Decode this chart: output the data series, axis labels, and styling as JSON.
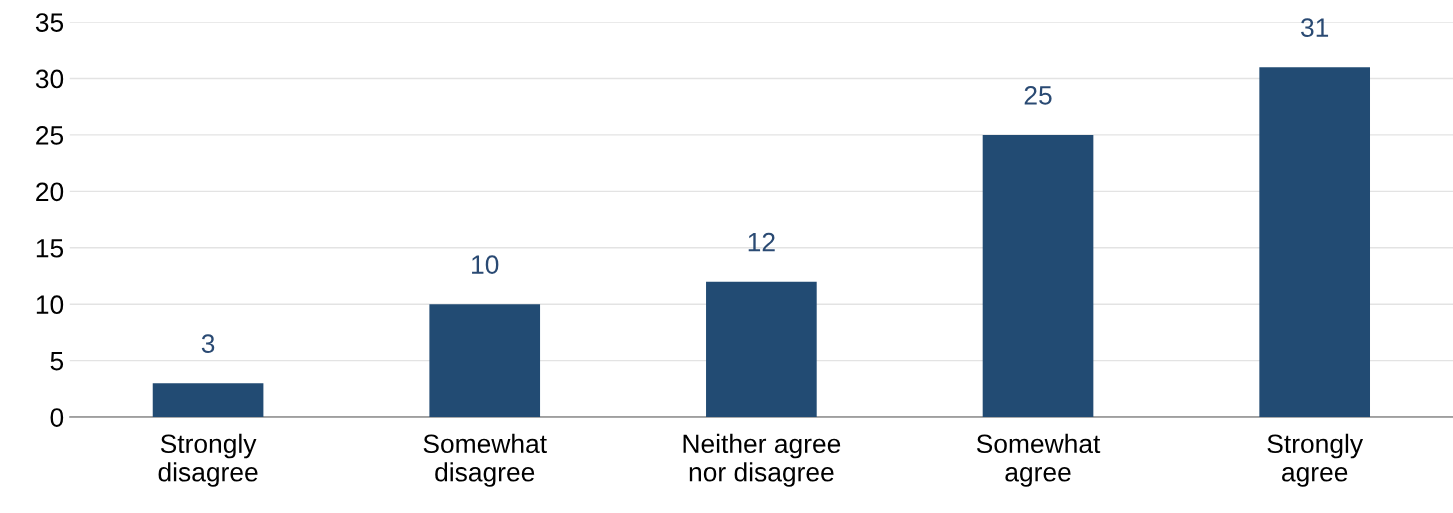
{
  "chart_data": {
    "type": "bar",
    "categories": [
      "Strongly\ndisagree",
      "Somewhat\ndisagree",
      "Neither agree\nnor disagree",
      "Somewhat\nagree",
      "Strongly\nagree"
    ],
    "values": [
      3,
      10,
      12,
      25,
      31
    ],
    "color": "#224b73",
    "ylim": [
      0,
      35
    ],
    "yticks": [
      0,
      5,
      10,
      15,
      20,
      25,
      30,
      35
    ],
    "grid": "y",
    "data_labels": true
  }
}
